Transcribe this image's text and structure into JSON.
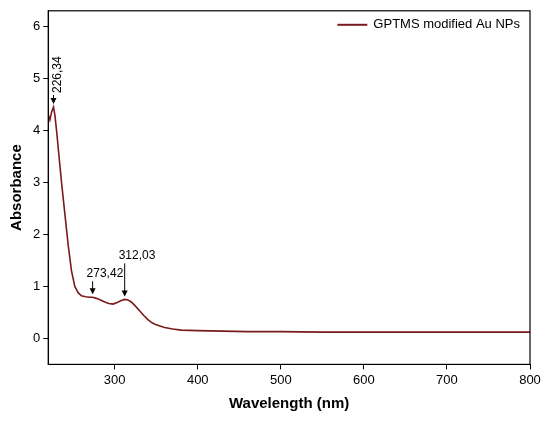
{
  "chart_data": {
    "type": "line",
    "x_label": "Wavelength (nm)",
    "y_label": "Absorbance",
    "x": [
      220,
      222,
      224,
      226.34,
      228,
      230,
      233,
      236,
      240,
      244,
      248,
      252,
      256,
      260,
      265,
      270,
      273.42,
      278,
      283,
      288,
      293,
      298,
      303,
      308,
      312.03,
      316,
      320,
      325,
      330,
      335,
      340,
      345,
      350,
      360,
      370,
      380,
      400,
      430,
      460,
      500,
      550,
      600,
      650,
      700,
      750,
      800
    ],
    "series": [
      {
        "name": "GPTMS modified Au NPs",
        "color": "#7a1a1c",
        "values": [
          4.3,
          4.2,
          4.35,
          4.45,
          4.3,
          4.0,
          3.5,
          3.0,
          2.4,
          1.8,
          1.3,
          1.0,
          0.88,
          0.82,
          0.8,
          0.79,
          0.79,
          0.77,
          0.74,
          0.7,
          0.67,
          0.66,
          0.69,
          0.73,
          0.75,
          0.74,
          0.7,
          0.62,
          0.53,
          0.44,
          0.36,
          0.3,
          0.26,
          0.21,
          0.18,
          0.16,
          0.15,
          0.14,
          0.13,
          0.13,
          0.12,
          0.12,
          0.12,
          0.12,
          0.12,
          0.12
        ]
      }
    ],
    "xlim": [
      220,
      800
    ],
    "ylim": [
      -0.5,
      6.3
    ],
    "xticks": [
      300,
      400,
      500,
      600,
      700,
      800
    ],
    "yticks": [
      0,
      1,
      2,
      3,
      4,
      5,
      6
    ],
    "grid": false,
    "legend": "upper right",
    "annotations": [
      {
        "text": "226,34",
        "x": 226.34,
        "y": 4.45
      },
      {
        "text": "273,42",
        "x": 273.42,
        "y": 0.79
      },
      {
        "text": "312,03",
        "x": 312.03,
        "y": 0.75
      }
    ]
  }
}
